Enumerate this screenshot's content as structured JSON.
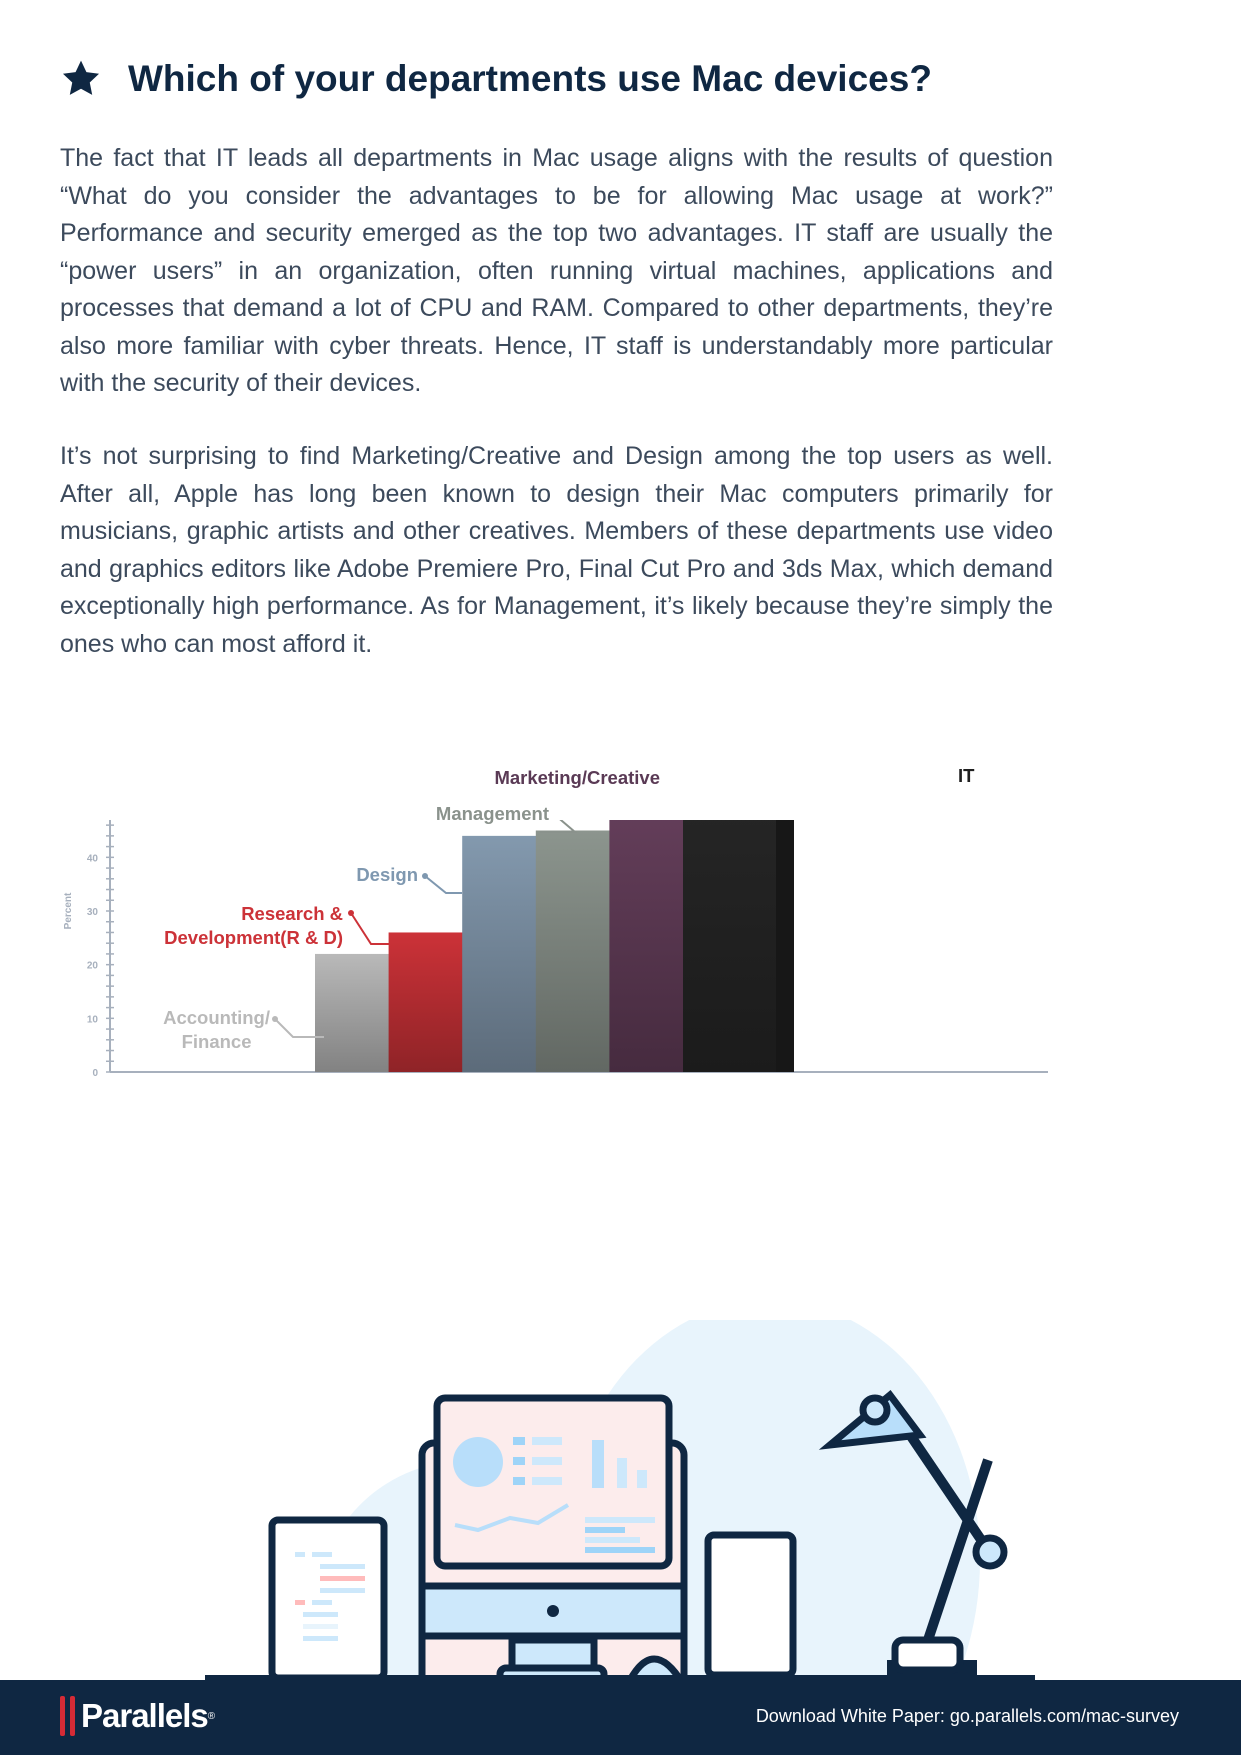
{
  "header": {
    "title": "Which of your departments use Mac devices?",
    "icon": "star-icon"
  },
  "body": {
    "paragraphs": [
      "The fact that IT leads all departments in Mac usage aligns with the results of question “What do you consider the advantages to be for allowing Mac usage at work?” Performance and security emerged as the top two advantages. IT staff are usually the “power users” in an organization, often running virtual machines, applications and processes that demand a lot of CPU and RAM. Compared to other departments, they’re also more familiar with cyber threats. Hence, IT staff is understandably more particular with the security of their devices.",
      "It’s not surprising to find Marketing/Creative and Design among the top users as well. After all, Apple has long been known to design their Mac computers primarily for musicians, graphic artists and other creatives. Members of these departments use video and graphics editors like Adobe Premiere Pro, Final Cut Pro and 3ds Max, which demand exceptionally high performance. As for Management, it’s likely because they’re simply the ones who can most afford it."
    ]
  },
  "chart_data": {
    "type": "bar",
    "title": "",
    "xlabel": "",
    "ylabel": "Percent",
    "ylim": [
      0,
      60
    ],
    "yticks": [
      "0",
      "10",
      "20",
      "30",
      "40",
      "50",
      "60"
    ],
    "grid": false,
    "categories": [
      "Accounting/ Finance",
      "Research & Development(R & D)",
      "Design",
      "Management",
      "Marketing/Creative",
      "IT"
    ],
    "label_lines": [
      [
        "Accounting/",
        "Finance"
      ],
      [
        "Research &",
        "Development(R & D)"
      ],
      [
        "Design"
      ],
      [
        "Management"
      ],
      [
        "Marketing/Creative"
      ],
      [
        "IT"
      ]
    ],
    "values": [
      22,
      26,
      44,
      45,
      49,
      53
    ],
    "colors": [
      "#b9b9b9",
      "#cc3238",
      "#8399ae",
      "#8c958e",
      "#643e5a",
      "#262626"
    ],
    "label_colors": [
      "#b9b9b9",
      "#cc3238",
      "#7f98b0",
      "#8a928c",
      "#5a3a55",
      "#1f1f1f"
    ]
  },
  "footer": {
    "brand": "Parallels",
    "registered": "®",
    "download_text": "Download White Paper: go.parallels.com/mac-survey",
    "background": "#0f2742"
  }
}
